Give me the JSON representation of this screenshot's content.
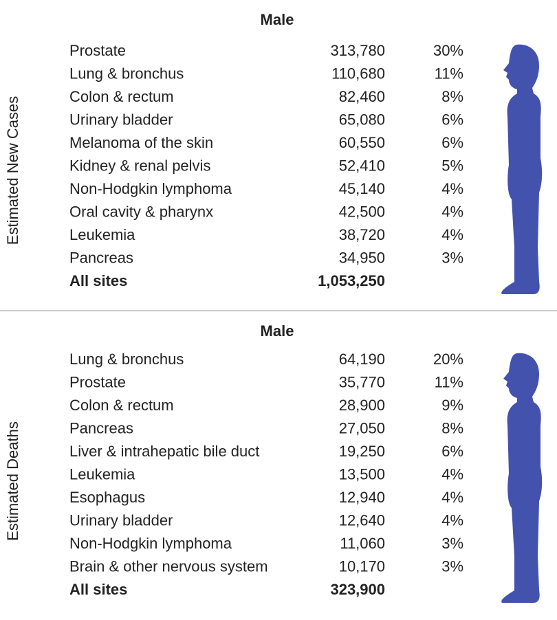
{
  "sections": [
    {
      "side_label": "Estimated New Cases",
      "header": "Male",
      "rows": [
        [
          "Prostate",
          "313,780",
          "30%"
        ],
        [
          "Lung & bronchus",
          "110,680",
          "11%"
        ],
        [
          "Colon & rectum",
          "82,460",
          "8%"
        ],
        [
          "Urinary bladder",
          "65,080",
          "6%"
        ],
        [
          "Melanoma of the skin",
          "60,550",
          "6%"
        ],
        [
          "Kidney & renal pelvis",
          "52,410",
          "5%"
        ],
        [
          "Non-Hodgkin lymphoma",
          "45,140",
          "4%"
        ],
        [
          "Oral cavity & pharynx",
          "42,500",
          "4%"
        ],
        [
          "Leukemia",
          "38,720",
          "4%"
        ],
        [
          "Pancreas",
          "34,950",
          "3%"
        ]
      ],
      "total": {
        "label": "All sites",
        "value": "1,053,250"
      }
    },
    {
      "side_label": "Estimated Deaths",
      "header": "Male",
      "rows": [
        [
          "Lung & bronchus",
          "64,190",
          "20%"
        ],
        [
          "Prostate",
          "35,770",
          "11%"
        ],
        [
          "Colon & rectum",
          "28,900",
          "9%"
        ],
        [
          "Pancreas",
          "27,050",
          "8%"
        ],
        [
          "Liver & intrahepatic bile duct",
          "19,250",
          "6%"
        ],
        [
          "Leukemia",
          "13,500",
          "4%"
        ],
        [
          "Esophagus",
          "12,940",
          "4%"
        ],
        [
          "Urinary bladder",
          "12,640",
          "4%"
        ],
        [
          "Non-Hodgkin lymphoma",
          "11,060",
          "3%"
        ],
        [
          "Brain & other nervous system",
          "10,170",
          "3%"
        ]
      ],
      "total": {
        "label": "All sites",
        "value": "323,900"
      }
    }
  ]
}
